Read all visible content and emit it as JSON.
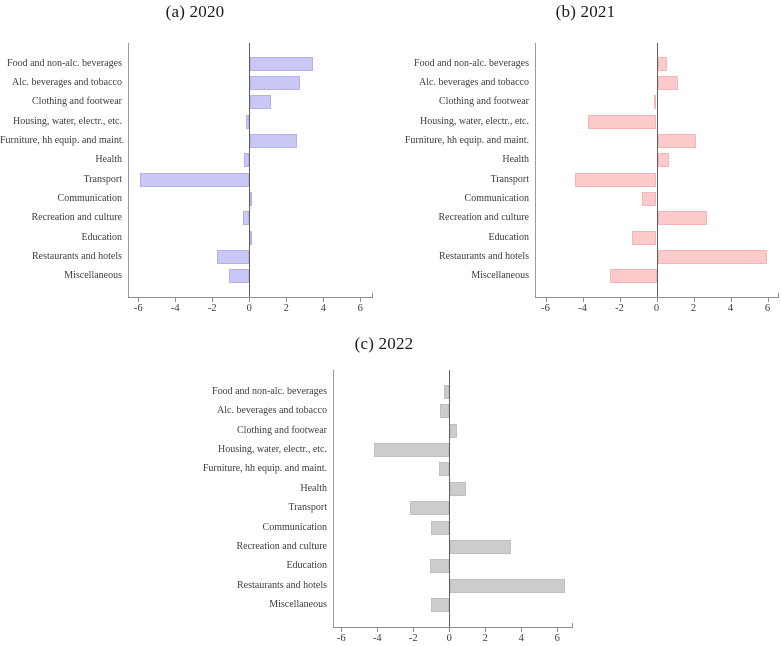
{
  "figure": {
    "background_color": "#ffffff",
    "text_color": "#3d3d3d",
    "axis_line_color": "#8c8c8c",
    "zero_line_color": "#5f5f5f"
  },
  "chart_data": [
    {
      "type": "bar",
      "orientation": "horizontal",
      "title": "(a) 2020",
      "bar_color": "#c9c7f3",
      "bar_border_color": "#b4b1ee",
      "xlabel": "",
      "ylabel": "",
      "xlim": [
        -6.6,
        6.7
      ],
      "xticks": [
        -6,
        -4,
        -2,
        0,
        2,
        4,
        6
      ],
      "grid": false,
      "legend": "none",
      "categories": [
        "Food and non-alc. beverages",
        "Alc. beverages and tobacco",
        "Clothing and footwear",
        "Housing, water, electr., etc.",
        "Furniture, hh equip. and maint.",
        "Health",
        "Transport",
        "Communication",
        "Recreation and culture",
        "Education",
        "Restaurants and hotels",
        "Miscellaneous"
      ],
      "values": [
        3.4,
        2.7,
        1.1,
        -0.2,
        2.5,
        -0.3,
        -5.9,
        0.1,
        -0.35,
        0.05,
        -1.75,
        -1.1
      ]
    },
    {
      "type": "bar",
      "orientation": "horizontal",
      "title": "(b) 2021",
      "bar_color": "#fbcbcb",
      "bar_border_color": "#f6b6b8",
      "xlabel": "",
      "ylabel": "",
      "xlim": [
        -6.6,
        6.7
      ],
      "xticks": [
        -6,
        -4,
        -2,
        0,
        2,
        4,
        6
      ],
      "grid": false,
      "legend": "none",
      "categories": [
        "Food and non-alc. beverages",
        "Alc. beverages and tobacco",
        "Clothing and footwear",
        "Housing, water, electr., etc.",
        "Furniture, hh equip. and maint.",
        "Health",
        "Transport",
        "Communication",
        "Recreation and culture",
        "Education",
        "Restaurants and hotels",
        "Miscellaneous"
      ],
      "values": [
        0.5,
        1.1,
        -0.15,
        -3.7,
        2.1,
        0.6,
        -4.4,
        -0.8,
        2.7,
        -1.35,
        5.9,
        -2.5
      ]
    },
    {
      "type": "bar",
      "orientation": "horizontal",
      "title": "(c) 2022",
      "bar_color": "#cccccc",
      "bar_border_color": "#bfbfbf",
      "xlabel": "",
      "ylabel": "",
      "xlim": [
        -6.5,
        6.9
      ],
      "xticks": [
        -6,
        -4,
        -2,
        0,
        2,
        4,
        6
      ],
      "grid": false,
      "legend": "none",
      "categories": [
        "Food and non-alc. beverages",
        "Alc. beverages and tobacco",
        "Clothing and footwear",
        "Housing, water, electr., etc.",
        "Furniture, hh equip. and maint.",
        "Health",
        "Transport",
        "Communication",
        "Recreation and culture",
        "Education",
        "Restaurants and hotels",
        "Miscellaneous"
      ],
      "values": [
        -0.3,
        -0.5,
        0.4,
        -4.2,
        -0.6,
        0.9,
        -2.2,
        -1.0,
        3.4,
        -1.1,
        6.4,
        -1.0
      ]
    }
  ]
}
